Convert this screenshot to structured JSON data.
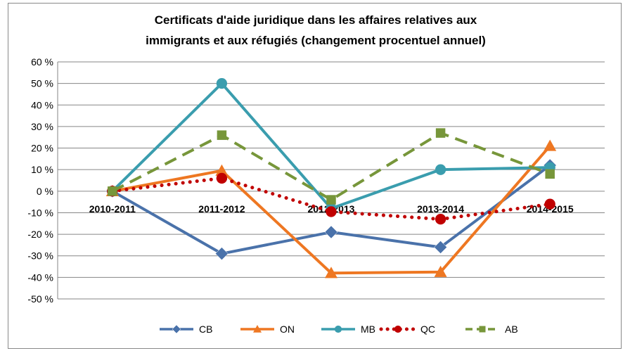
{
  "chart_data": {
    "type": "line",
    "title_lines": [
      "Certificats d'aide juridique dans les affaires relatives aux",
      "immigrants et aux réfugiés (changement procentuel annuel)"
    ],
    "categories": [
      "2010-2011",
      "2011-2012",
      "2012-2013",
      "2013-2014",
      "2014-2015"
    ],
    "ylim": [
      -50,
      60
    ],
    "yticks": [
      60,
      50,
      40,
      30,
      20,
      10,
      0,
      -10,
      -20,
      -30,
      -40,
      -50
    ],
    "ytick_labels": [
      "60 %",
      "50 %",
      "40 %",
      "30 %",
      "20 %",
      "10 %",
      "0 %",
      "-10 %",
      "-20 %",
      "-30 %",
      "-40 %",
      "-50 %"
    ],
    "grid": true,
    "legend_position": "bottom",
    "series": [
      {
        "name": "CB",
        "values": [
          0,
          -29,
          -19,
          -26,
          12
        ],
        "color": "#4a72aa",
        "marker": "diamond",
        "dash": "solid"
      },
      {
        "name": "ON",
        "values": [
          0,
          9.5,
          -38,
          -37.5,
          21
        ],
        "color": "#ee7722",
        "marker": "triangle",
        "dash": "solid"
      },
      {
        "name": "MB",
        "values": [
          0,
          50,
          -8,
          10,
          11
        ],
        "color": "#3a9dae",
        "marker": "circle",
        "dash": "solid"
      },
      {
        "name": "QC",
        "values": [
          0,
          6,
          -9.5,
          -13,
          -6
        ],
        "color": "#c00000",
        "marker": "circle",
        "dash": "dotted"
      },
      {
        "name": "AB",
        "values": [
          0,
          26,
          -4,
          27,
          8
        ],
        "color": "#77963a",
        "marker": "square",
        "dash": "dashed"
      }
    ]
  }
}
